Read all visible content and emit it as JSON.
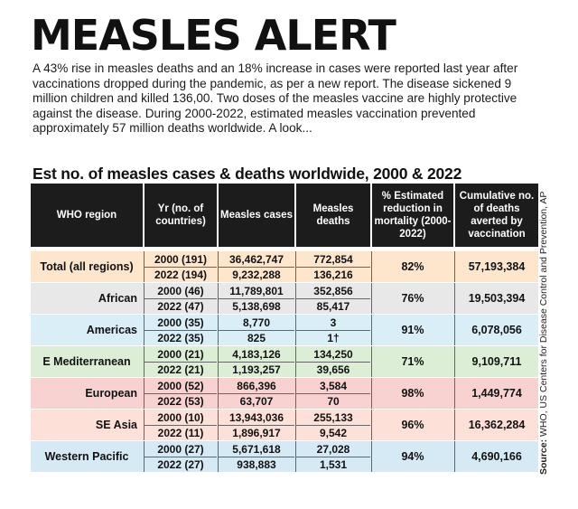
{
  "headline": "MEASLES ALERT",
  "intro": "A 43% rise in measles deaths and an 18% increase in cases were reported last year after vaccinations dropped during the pandemic, as per a new report. The disease sickened 9 million children and killed 136,00. Two doses of the measles vaccine are highly protective against the disease. During 2000-2022, estimated measles vaccination prevented approximately 57 million deaths worldwide. A look...",
  "table_title": "Est no. of measles cases & deaths worldwide, 2000 & 2022",
  "source_label": "Source:",
  "source_text": "WHO, US Centers for Disease Control and Prevention, AP",
  "headers": {
    "region": "WHO region",
    "year": "Yr (no. of countries)",
    "cases": "Measles cases",
    "deaths": "Measles deaths",
    "reduction": "% Estimated reduction in mortality (2000-2022)",
    "averted": "Cumulative no. of deaths averted by vaccination"
  },
  "rows": [
    {
      "region": "Total (all regions)",
      "color": "#fde6cc",
      "y1": "2000 (191)",
      "y2": "2022 (194)",
      "c1": "36,462,747",
      "c2": "9,232,288",
      "d1": "772,854",
      "d2": "136,216",
      "reduction": "82%",
      "averted": "57,193,384"
    },
    {
      "region": "African",
      "color": "#e8e8e8",
      "y1": "2000 (46)",
      "y2": "2022 (47)",
      "c1": "11,789,801",
      "c2": "5,138,698",
      "d1": "352,856",
      "d2": "85,417",
      "reduction": "76%",
      "averted": "19,503,394"
    },
    {
      "region": "Americas",
      "color": "#d9eef7",
      "y1": "2000 (35)",
      "y2": "2022 (35)",
      "c1": "8,770",
      "c2": "825",
      "d1": "3",
      "d2": "1†",
      "reduction": "91%",
      "averted": "6,078,056"
    },
    {
      "region": "E Mediterranean",
      "color": "#dcefd6",
      "y1": "2000 (21)",
      "y2": "2022 (21)",
      "c1": "4,183,126",
      "c2": "1,193,257",
      "d1": "134,250",
      "d2": "39,656",
      "reduction": "71%",
      "averted": "9,109,711"
    },
    {
      "region": "European",
      "color": "#f8d2d0",
      "y1": "2000 (52)",
      "y2": "2022 (53)",
      "c1": "866,396",
      "c2": "63,707",
      "d1": "3,584",
      "d2": "70",
      "reduction": "98%",
      "averted": "1,449,774"
    },
    {
      "region": "SE Asia",
      "color": "#fde0d8",
      "y1": "2000 (10)",
      "y2": "2022 (11)",
      "c1": "13,943,036",
      "c2": "1,896,917",
      "d1": "255,133",
      "d2": "9,542",
      "reduction": "96%",
      "averted": "16,362,284"
    },
    {
      "region": "Western Pacific",
      "color": "#d6eaf6",
      "y1": "2000 (27)",
      "y2": "2022 (27)",
      "c1": "5,671,618",
      "c2": "938,883",
      "d1": "27,028",
      "d2": "1,531",
      "reduction": "94%",
      "averted": "4,690,166"
    }
  ]
}
